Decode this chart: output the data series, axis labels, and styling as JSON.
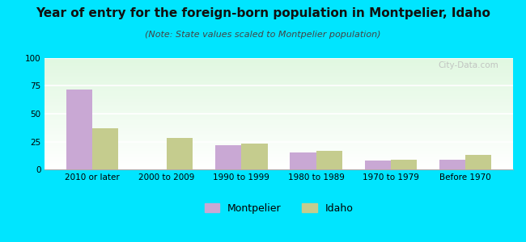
{
  "title": "Year of entry for the foreign-born population in Montpelier, Idaho",
  "subtitle": "(Note: State values scaled to Montpelier population)",
  "categories": [
    "2010 or later",
    "2000 to 2009",
    "1990 to 1999",
    "1980 to 1989",
    "1970 to 1979",
    "Before 1970"
  ],
  "montpelier_values": [
    72,
    0,
    22,
    15,
    8,
    9
  ],
  "idaho_values": [
    37,
    28,
    23,
    17,
    9,
    13
  ],
  "montpelier_color": "#c9a8d4",
  "idaho_color": "#c5cc8e",
  "background_outer": "#00e5ff",
  "ylim": [
    0,
    100
  ],
  "yticks": [
    0,
    25,
    50,
    75,
    100
  ],
  "bar_width": 0.35,
  "title_fontsize": 11,
  "subtitle_fontsize": 8,
  "tick_fontsize": 7.5,
  "legend_fontsize": 9
}
